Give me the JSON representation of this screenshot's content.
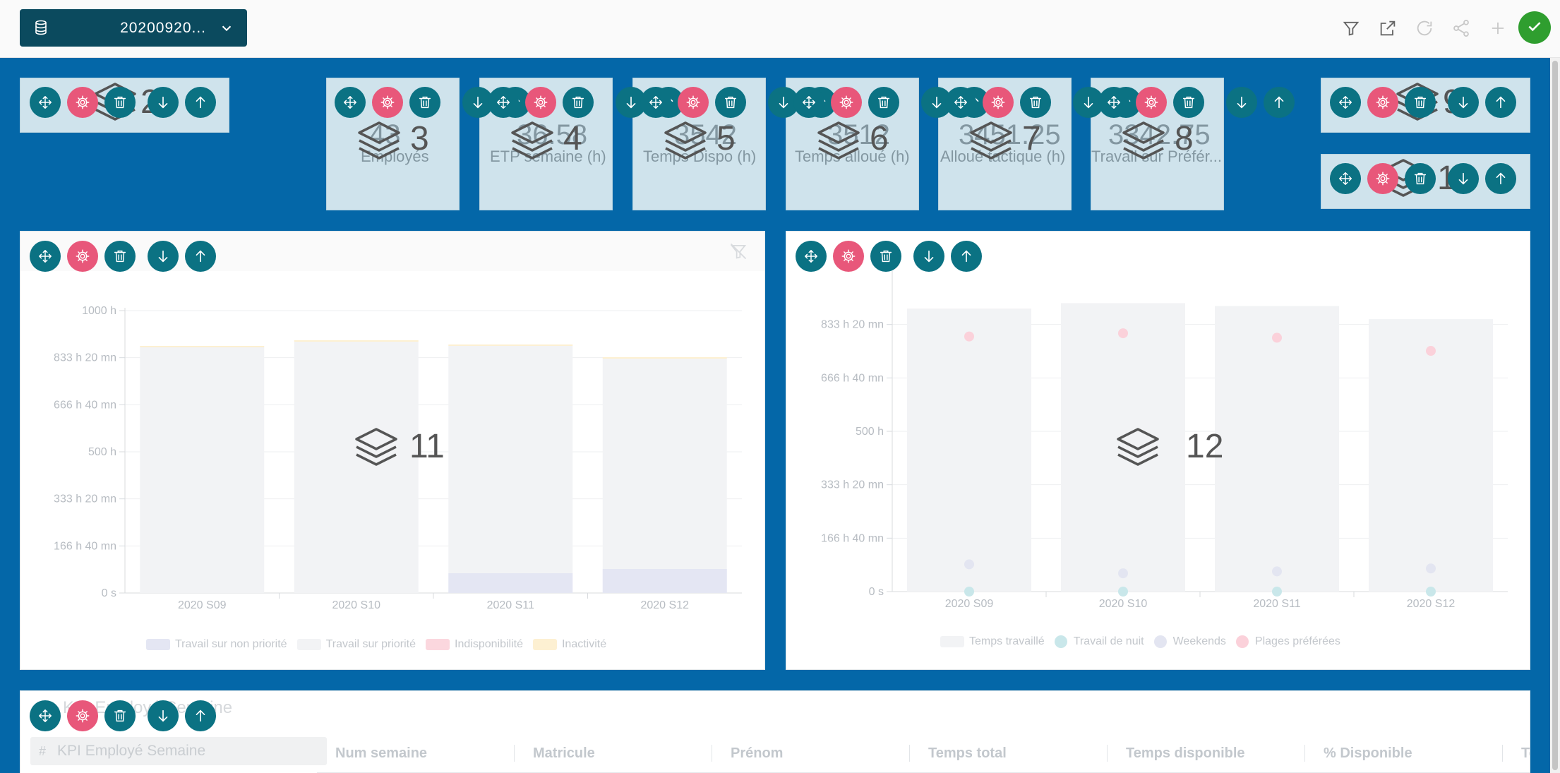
{
  "datasource": {
    "label": "20200920...",
    "icon": "database-icon"
  },
  "toolbar": {
    "icons": [
      "filter-icon",
      "external-link-icon",
      "refresh-icon",
      "share-icon",
      "plus-icon"
    ],
    "confirm_icon": "check-icon"
  },
  "colors": {
    "canvas": "#0467a8",
    "tile": "#cfe3ec",
    "tool_teal": "#0b7283",
    "tool_pink": "#e8577a",
    "confirm": "#2f9e2f"
  },
  "widgets": [
    {
      "id": "2",
      "ghost_value": "",
      "ghost_label": ""
    },
    {
      "id": "3",
      "ghost_value": "43",
      "ghost_label": "Employés"
    },
    {
      "id": "4",
      "ghost_value": "36.58",
      "ghost_label": "ETP semaine (h)"
    },
    {
      "id": "5",
      "ghost_value": "3542",
      "ghost_label": "Temps Dispo (h)"
    },
    {
      "id": "6",
      "ghost_value": "3512",
      "ghost_label": "Temps alloué (h)"
    },
    {
      "id": "7",
      "ghost_value": "3451.25",
      "ghost_label": "Alloué tactique (h)"
    },
    {
      "id": "8",
      "ghost_value": "3342.75",
      "ghost_label": "Travail sur Préfér..."
    },
    {
      "id": "9",
      "ghost_value": "",
      "ghost_label": ""
    },
    {
      "id": "10",
      "ghost_value": "",
      "ghost_label": ""
    },
    {
      "id": "11",
      "ghost_value": "",
      "ghost_label": ""
    },
    {
      "id": "12",
      "ghost_value": "",
      "ghost_label": ""
    }
  ],
  "widget_tools": [
    "move-icon",
    "settings-icon",
    "trash-icon",
    "arrow-down-icon",
    "arrow-up-icon"
  ],
  "chart_data": [
    {
      "type": "bar",
      "stacked": true,
      "categories": [
        "2020 S09",
        "2020 S10",
        "2020 S11",
        "2020 S12"
      ],
      "yticks": [
        "0 s",
        "166 h 40 mn",
        "333 h 20 mn",
        "500 h",
        "666 h 40 mn",
        "833 h 20 mn",
        "1000 h"
      ],
      "ylim": [
        0,
        1000
      ],
      "series": [
        {
          "name": "Travail sur non priorité",
          "color": "#e4e6f3",
          "values": [
            0,
            0,
            70,
            85
          ]
        },
        {
          "name": "Travail sur priorité",
          "color": "#f2f3f5",
          "values": [
            870,
            890,
            805,
            745
          ]
        },
        {
          "name": "Indisponibilité",
          "color": "#fbd7de",
          "values": [
            0,
            0,
            0,
            0
          ]
        },
        {
          "name": "Inactivité",
          "color": "#fdf0d2",
          "values": [
            5,
            5,
            5,
            5
          ]
        }
      ],
      "legend": "bottom",
      "grid": true
    },
    {
      "type": "bar",
      "categories": [
        "2020 S09",
        "2020 S10",
        "2020 S11",
        "2020 S12"
      ],
      "yticks": [
        "0 s",
        "166 h 40 mn",
        "333 h 20 mn",
        "500 h",
        "666 h 40 mn",
        "833 h 20 mn"
      ],
      "ylim": [
        0,
        1000
      ],
      "series": [
        {
          "name": "Temps travaillé",
          "kind": "bar",
          "color": "#f2f3f5",
          "values": [
            883,
            900,
            891,
            850
          ]
        },
        {
          "name": "Travail de nuit",
          "kind": "dot",
          "color": "#c9e7ea",
          "values": [
            0,
            0,
            0,
            0
          ]
        },
        {
          "name": "Weekends",
          "kind": "dot",
          "color": "#e3e5f1",
          "values": [
            85,
            57,
            63,
            72
          ]
        },
        {
          "name": "Plages préférées",
          "kind": "dot",
          "color": "#fbd1da",
          "values": [
            796,
            806,
            792,
            751
          ]
        }
      ],
      "legend": "bottom",
      "grid": true
    }
  ],
  "table": {
    "title": "KPI Employé Semaine",
    "search_placeholder": "KPI Employé Semaine",
    "columns": [
      "Num semaine",
      "Matricule",
      "Prénom",
      "Temps total",
      "Temps disponible",
      "% Disponible",
      "Te..."
    ]
  }
}
